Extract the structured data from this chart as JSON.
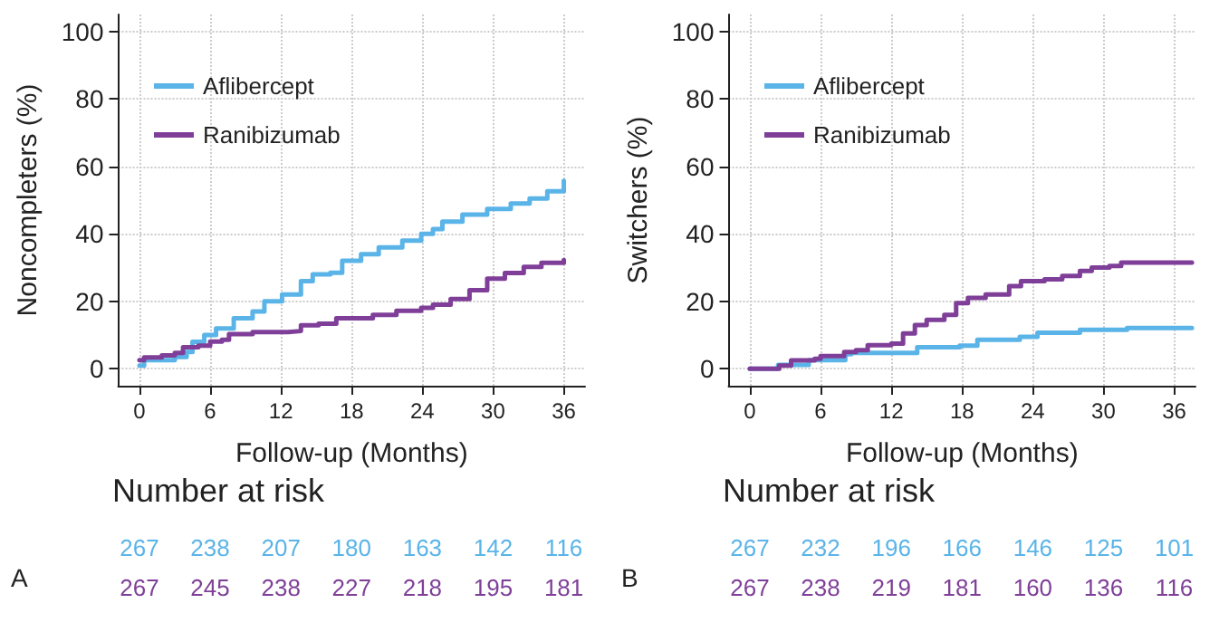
{
  "chart_data": [
    {
      "type": "step",
      "xlabel": "Follow-up (Months)",
      "ylabel": "Noncompleters (%)",
      "xlim": [
        -1.8,
        37.8
      ],
      "ylim": [
        -5,
        105
      ],
      "xticks": [
        0,
        6,
        12,
        18,
        24,
        30,
        36
      ],
      "yticks": [
        0,
        20,
        40,
        60,
        80,
        100
      ],
      "grid": true,
      "legend": "top left",
      "marker": "none",
      "series": [
        {
          "name": "Aflibercept",
          "color": "#5ab4e8",
          "x": [
            0,
            0.4,
            1,
            3,
            4,
            4.5,
            5.5,
            6.5,
            8,
            9.6,
            10.6,
            12.1,
            13.7,
            14.7,
            16.2,
            17.2,
            18.8,
            20.3,
            22.3,
            23.9,
            24.9,
            25.7,
            27.4,
            29.5,
            31.5,
            33.1,
            34.6,
            36
          ],
          "values": [
            1,
            2.6,
            2.6,
            3.5,
            5,
            8,
            10,
            12,
            15,
            17,
            20,
            22,
            26,
            28,
            28.5,
            32,
            34,
            36,
            38,
            40,
            41.4,
            43.6,
            45.7,
            47.4,
            49,
            50.5,
            52.6,
            55.7
          ]
        },
        {
          "name": "Ranibizumab",
          "color": "#7f3f98",
          "x": [
            0,
            0.4,
            1.9,
            3,
            3.7,
            5,
            6,
            7,
            7.6,
            9.6,
            12.6,
            13.7,
            15.2,
            16.7,
            19.8,
            21.8,
            23.9,
            24.9,
            26.4,
            28,
            29.5,
            31,
            32.6,
            34.1,
            36
          ],
          "values": [
            2.6,
            3.4,
            4,
            4.7,
            6.4,
            6.9,
            8.1,
            8.6,
            10.3,
            10.9,
            11.2,
            12.9,
            13.4,
            15,
            16,
            17.2,
            18.1,
            19,
            20.7,
            23.3,
            26.7,
            28.4,
            30.2,
            31.4,
            32.2
          ]
        }
      ],
      "annotations": [
        "Number at risk",
        "267 238 207 180 163 142 116",
        "267 245 238 227 218 195 181",
        "A"
      ]
    },
    {
      "type": "step",
      "xlabel": "Follow-up (Months)",
      "ylabel": "Switchers (%)",
      "xlim": [
        -1.8,
        37.8
      ],
      "ylim": [
        -5,
        105
      ],
      "xticks": [
        0,
        6,
        12,
        18,
        24,
        30,
        36
      ],
      "yticks": [
        0,
        20,
        40,
        60,
        80,
        100
      ],
      "grid": true,
      "legend": "top left",
      "marker": "none",
      "series": [
        {
          "name": "Aflibercept",
          "color": "#5ab4e8",
          "x": [
            0,
            2.4,
            5,
            8.1,
            8.6,
            14.2,
            17.8,
            19.3,
            22.9,
            24.4,
            28,
            32,
            37.5
          ],
          "values": [
            0,
            1.2,
            2.6,
            4.3,
            4.7,
            6.4,
            6.9,
            8.6,
            9.5,
            10.7,
            11.6,
            12.1,
            12.1
          ]
        },
        {
          "name": "Ranibizumab",
          "color": "#7f3f98",
          "x": [
            0,
            2.5,
            3.5,
            5.5,
            6,
            8,
            9,
            10,
            12,
            13,
            14,
            15,
            16.5,
            17.5,
            18.5,
            20,
            22,
            23,
            25,
            26.5,
            28,
            29,
            30.5,
            31.5,
            37.5
          ],
          "values": [
            0,
            1,
            2.5,
            3,
            3.8,
            5,
            5.5,
            7,
            7.5,
            10.5,
            13,
            14.5,
            16,
            19.5,
            21,
            22,
            24.5,
            26,
            26.5,
            27.5,
            29,
            30,
            30.5,
            31.5,
            31.5
          ]
        }
      ],
      "annotations": [
        "Number at risk",
        "267 232 196 166 146 125 101",
        "267 238 219 181 160 136 116",
        "B"
      ]
    }
  ]
}
